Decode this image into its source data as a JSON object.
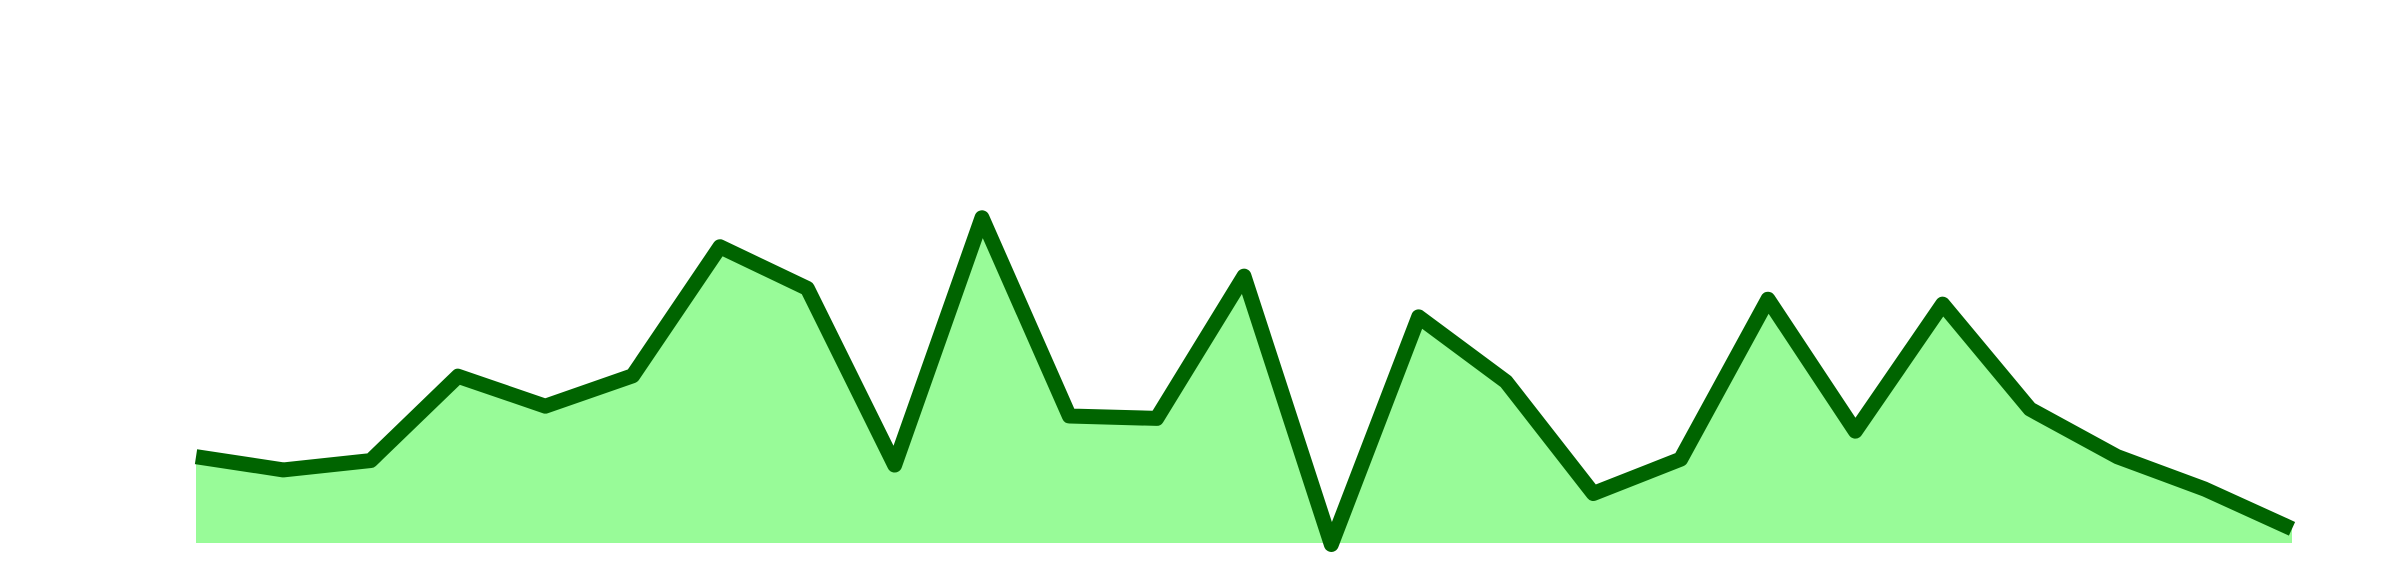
{
  "chart_data": {
    "type": "area",
    "x": [
      0,
      1,
      2,
      3,
      4,
      5,
      6,
      7,
      8,
      9,
      10,
      11,
      12,
      13,
      14,
      15,
      16,
      17,
      18,
      19,
      20,
      21,
      22,
      23,
      24
    ],
    "series": [
      {
        "values": [
          0.176,
          0.149,
          0.168,
          0.34,
          0.279,
          0.341,
          0.604,
          0.519,
          0.159,
          0.663,
          0.259,
          0.254,
          0.544,
          -0.003,
          0.461,
          0.329,
          0.101,
          0.171,
          0.497,
          0.228,
          0.487,
          0.273,
          0.176,
          0.11,
          0.029
        ],
        "line_color": "#006400",
        "fill_color": "#98fb98"
      }
    ],
    "xlim": [
      0,
      24
    ],
    "ylim": [
      0,
      1.05
    ],
    "grid": false,
    "legend": "none"
  }
}
